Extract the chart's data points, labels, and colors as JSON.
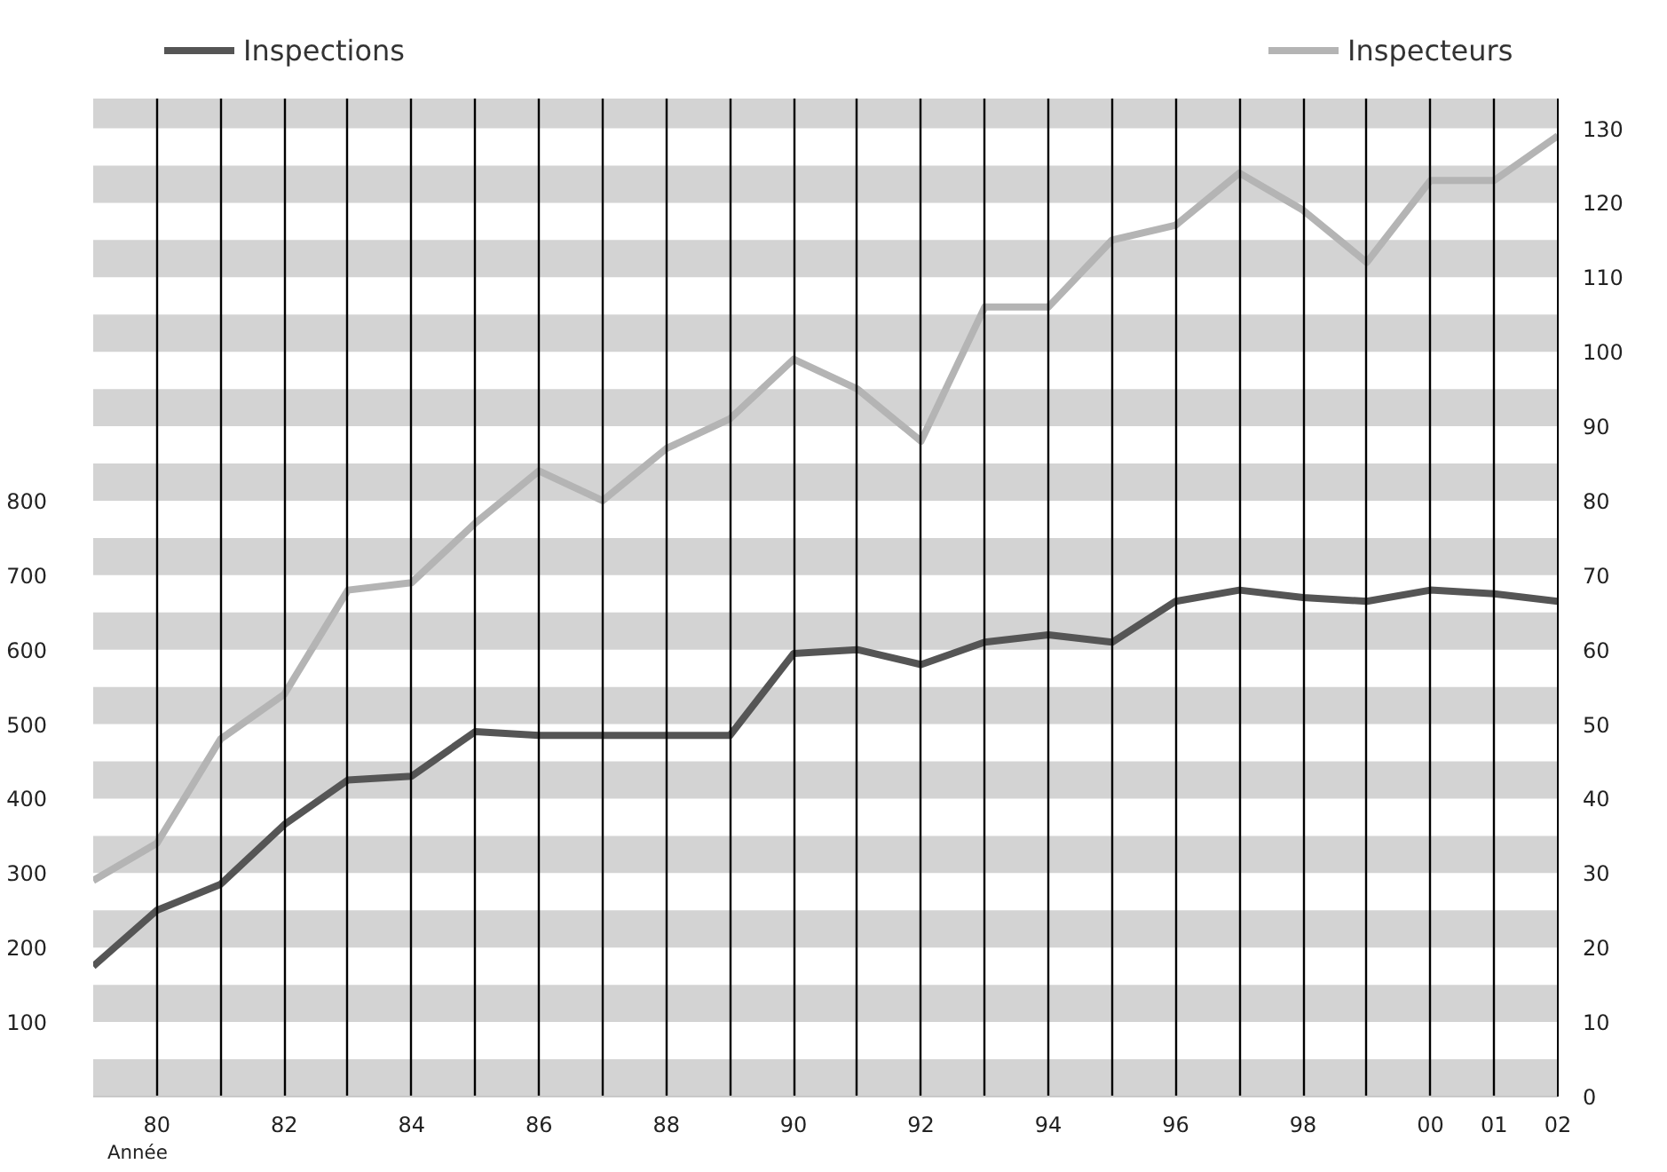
{
  "chart_data": {
    "type": "line",
    "xlabel": "Année",
    "x": [
      1979,
      1980,
      1981,
      1982,
      1983,
      1984,
      1985,
      1986,
      1987,
      1988,
      1989,
      1990,
      1991,
      1992,
      1993,
      1994,
      1995,
      1996,
      1997,
      1998,
      1999,
      2000,
      2001,
      2002
    ],
    "series": [
      {
        "name": "Inspections",
        "color": "#555555",
        "values": [
          175,
          250,
          285,
          365,
          425,
          430,
          490,
          485,
          485,
          485,
          485,
          595,
          600,
          580,
          610,
          620,
          610,
          665,
          680,
          670,
          665,
          680,
          675,
          665
        ]
      },
      {
        "name": "Inspecteurs",
        "color": "#b4b4b4",
        "axis": "y2",
        "values": [
          29,
          34,
          48,
          54,
          68,
          69,
          77,
          84,
          80,
          87,
          91,
          99,
          95,
          88,
          106,
          106,
          115,
          117,
          124,
          119,
          112,
          123,
          123,
          129
        ]
      }
    ],
    "xlim": [
      1979,
      2002
    ],
    "xticks": [
      {
        "value": 1980,
        "label": "80"
      },
      {
        "value": 1981,
        "label": null
      },
      {
        "value": 1982,
        "label": "82"
      },
      {
        "value": 1983,
        "label": null
      },
      {
        "value": 1984,
        "label": "84"
      },
      {
        "value": 1985,
        "label": null
      },
      {
        "value": 1986,
        "label": "86"
      },
      {
        "value": 1987,
        "label": null
      },
      {
        "value": 1988,
        "label": "88"
      },
      {
        "value": 1989,
        "label": null
      },
      {
        "value": 1990,
        "label": "90"
      },
      {
        "value": 1991,
        "label": null
      },
      {
        "value": 1992,
        "label": "92"
      },
      {
        "value": 1993,
        "label": null
      },
      {
        "value": 1994,
        "label": "94"
      },
      {
        "value": 1995,
        "label": null
      },
      {
        "value": 1996,
        "label": "96"
      },
      {
        "value": 1997,
        "label": null
      },
      {
        "value": 1998,
        "label": "98"
      },
      {
        "value": 1999,
        "label": null
      },
      {
        "value": 2000,
        "label": "00"
      },
      {
        "value": 2001,
        "label": "01"
      },
      {
        "value": 2002,
        "label": "02"
      }
    ],
    "ylim": [
      0,
      1340
    ],
    "yticks": [
      100,
      200,
      300,
      400,
      500,
      600,
      700,
      800
    ],
    "y2lim": [
      0,
      134
    ],
    "y2ticks": [
      0,
      10,
      20,
      30,
      40,
      50,
      60,
      70,
      80,
      90,
      100,
      110,
      120,
      130
    ],
    "bands": [
      {
        "axis": "y2",
        "from": 0,
        "to": 5,
        "color": "#d3d3d3"
      },
      {
        "axis": "y2",
        "from": 10,
        "to": 15,
        "color": "#d3d3d3"
      },
      {
        "axis": "y2",
        "from": 20,
        "to": 25,
        "color": "#d3d3d3"
      },
      {
        "axis": "y2",
        "from": 30,
        "to": 35,
        "color": "#d3d3d3"
      },
      {
        "axis": "y2",
        "from": 40,
        "to": 45,
        "color": "#d3d3d3"
      },
      {
        "axis": "y2",
        "from": 50,
        "to": 55,
        "color": "#d3d3d3"
      },
      {
        "axis": "y2",
        "from": 60,
        "to": 65,
        "color": "#d3d3d3"
      },
      {
        "axis": "y2",
        "from": 70,
        "to": 75,
        "color": "#d3d3d3"
      },
      {
        "axis": "y2",
        "from": 80,
        "to": 85,
        "color": "#d3d3d3"
      },
      {
        "axis": "y2",
        "from": 90,
        "to": 95,
        "color": "#d3d3d3"
      },
      {
        "axis": "y2",
        "from": 100,
        "to": 105,
        "color": "#d3d3d3"
      },
      {
        "axis": "y2",
        "from": 110,
        "to": 115,
        "color": "#d3d3d3"
      },
      {
        "axis": "y2",
        "from": 120,
        "to": 125,
        "color": "#d3d3d3"
      },
      {
        "axis": "y2",
        "from": 130,
        "to": 134,
        "color": "#d3d3d3"
      }
    ],
    "grid": "x",
    "legend": "top",
    "line_style": "solid",
    "marker": "none"
  }
}
